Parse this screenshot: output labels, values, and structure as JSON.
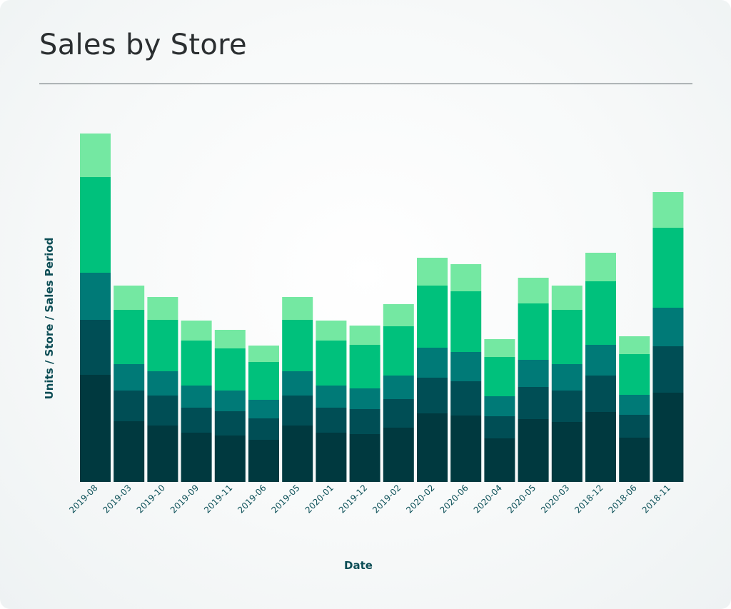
{
  "title": "Sales by Store",
  "chart_data": {
    "type": "bar",
    "stacked": true,
    "title": "Sales by Store",
    "xlabel": "Date",
    "ylabel": "Units / Store / Sales Period",
    "grid": false,
    "legend": "none",
    "ylim": [
      0,
      488
    ],
    "categories": [
      "2019-08",
      "2019-03",
      "2019-10",
      "2019-09",
      "2019-11",
      "2019-06",
      "2019-05",
      "2020-01",
      "2019-12",
      "2019-02",
      "2020-02",
      "2020-06",
      "2020-04",
      "2020-05",
      "2020-03",
      "2018-12",
      "2018-06",
      "2018-11"
    ],
    "colors": [
      "#00393f",
      "#004e55",
      "#007a77",
      "#00c17c",
      "#74e8a2"
    ],
    "series": [
      {
        "values": [
          150,
          85,
          79,
          69,
          65,
          59,
          79,
          69,
          67,
          76,
          96,
          93,
          61,
          88,
          84,
          98,
          62,
          125
        ]
      },
      {
        "values": [
          77,
          43,
          42,
          35,
          34,
          30,
          42,
          35,
          35,
          40,
          50,
          48,
          31,
          45,
          44,
          51,
          32,
          65
        ]
      },
      {
        "values": [
          66,
          37,
          34,
          31,
          29,
          26,
          34,
          31,
          29,
          33,
          42,
          41,
          28,
          38,
          37,
          43,
          28,
          54
        ]
      },
      {
        "values": [
          134,
          76,
          72,
          63,
          59,
          53,
          72,
          63,
          61,
          69,
          87,
          85,
          55,
          79,
          76,
          89,
          57,
          112
        ]
      },
      {
        "values": [
          61,
          34,
          32,
          28,
          26,
          23,
          32,
          28,
          27,
          31,
          39,
          38,
          25,
          36,
          34,
          40,
          25,
          50
        ]
      }
    ]
  }
}
